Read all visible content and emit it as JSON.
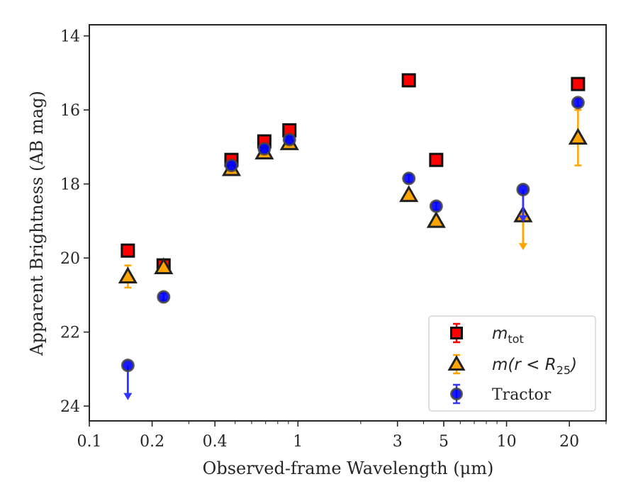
{
  "chart_data": {
    "type": "scatter",
    "xlabel": "Observed-frame Wavelength (μm)",
    "ylabel": "Apparent Brightness (AB mag)",
    "xscale": "log",
    "xlim": [
      0.1,
      30
    ],
    "ylim": [
      24.4,
      13.7
    ],
    "y_inverted": true,
    "x_ticks": [
      0.1,
      0.2,
      0.4,
      1,
      3,
      5,
      10,
      20
    ],
    "x_tick_labels": [
      "0.1",
      "0.2",
      "0.4",
      "1",
      "3",
      "5",
      "10",
      "20"
    ],
    "y_ticks": [
      14,
      16,
      18,
      20,
      22,
      24
    ],
    "y_tick_labels": [
      "14",
      "16",
      "18",
      "20",
      "22",
      "24"
    ],
    "grid": false,
    "legend_position": "lower-right",
    "series": [
      {
        "name": "m_tot",
        "legend_label": "m",
        "legend_sub": "tot",
        "marker": "square",
        "color": "#ff0000",
        "errcolor": "#ff0000",
        "points": [
          {
            "x": 0.153,
            "y": 19.8,
            "err": 0.1
          },
          {
            "x": 0.227,
            "y": 20.2,
            "err": 0.1
          },
          {
            "x": 0.48,
            "y": 17.35,
            "err": 0.1
          },
          {
            "x": 0.69,
            "y": 16.85,
            "err": 0.1
          },
          {
            "x": 0.91,
            "y": 16.55,
            "err": 0.1
          },
          {
            "x": 3.4,
            "y": 15.2,
            "err": 0.1
          },
          {
            "x": 4.6,
            "y": 17.35,
            "err": 0.1
          },
          {
            "x": 22,
            "y": 15.3,
            "err": 0.1
          }
        ]
      },
      {
        "name": "m(r < R25)",
        "legend_label": "m(r < R",
        "legend_sub": "25",
        "legend_suffix": ")",
        "marker": "triangle",
        "color": "#ffa500",
        "errcolor": "#ffa500",
        "points": [
          {
            "x": 0.153,
            "y": 20.5,
            "err": 0.3
          },
          {
            "x": 0.227,
            "y": 20.25,
            "err": 0.1
          },
          {
            "x": 0.48,
            "y": 17.6,
            "err": 0.1
          },
          {
            "x": 0.69,
            "y": 17.15,
            "err": 0.1
          },
          {
            "x": 0.91,
            "y": 16.9,
            "err": 0.1
          },
          {
            "x": 3.4,
            "y": 18.3,
            "err": 0.1
          },
          {
            "x": 4.6,
            "y": 19.0,
            "err": 0.1
          },
          {
            "x": 12,
            "y": 18.85,
            "upper_limit": true,
            "arrow_to": 19.75
          },
          {
            "x": 22,
            "y": 16.75,
            "err": 0.75
          }
        ]
      },
      {
        "name": "Tractor",
        "legend_label": "Tractor",
        "marker": "circle",
        "color": "#0000ff",
        "errcolor": "#3333ff",
        "points": [
          {
            "x": 0.153,
            "y": 22.9,
            "upper_limit": true,
            "arrow_to": 23.8
          },
          {
            "x": 0.227,
            "y": 21.05,
            "err": 0.1
          },
          {
            "x": 0.48,
            "y": 17.5,
            "err": 0.1
          },
          {
            "x": 0.69,
            "y": 17.05,
            "err": 0.1
          },
          {
            "x": 0.91,
            "y": 16.8,
            "err": 0.1
          },
          {
            "x": 3.4,
            "y": 17.85,
            "err": 0.1
          },
          {
            "x": 4.6,
            "y": 18.6,
            "err": 0.1
          },
          {
            "x": 12,
            "y": 18.15,
            "upper_limit": true,
            "arrow_to": 19.0
          },
          {
            "x": 22,
            "y": 15.8,
            "err": 0.1
          }
        ]
      }
    ]
  }
}
